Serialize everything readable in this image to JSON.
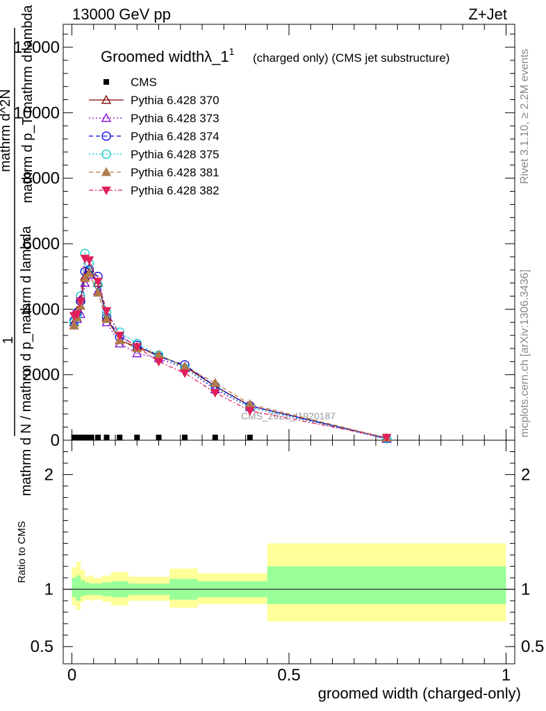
{
  "header": {
    "left": "13000 GeV pp",
    "right": "Z+Jet"
  },
  "side_labels": {
    "rivet": "Rivet 3.1.10, ≥ 2.2M events",
    "mcplots": "mcplots.cern.ch [arXiv:1306.3436]"
  },
  "watermark": "CMS_2021_I1920187",
  "chart_data": [
    {
      "type": "line",
      "title": "Groomed widthλ_1",
      "title_superscript": "1",
      "subtitle": "(charged only) (CMS jet substructure)",
      "xlabel": "",
      "ylabel_top": "1",
      "ylabel_bottom": "mathrm d N / mathrm d p_mathrm d lambda",
      "ylabel_numerator": "mathrm d^2N",
      "ylabel_denominator": "mathrm d p_T mathrm d lambda",
      "xlim": [
        -0.02,
        1.02
      ],
      "ylim": [
        0,
        12700
      ],
      "yticks": [
        0,
        2000,
        4000,
        6000,
        8000,
        10000,
        12000
      ],
      "ytick_labels": [
        "0",
        "2000",
        "4000",
        "6000",
        "8000",
        "10000",
        "12000"
      ],
      "grid": false,
      "legend_position": "top-left",
      "cms_points": {
        "name": "CMS",
        "color": "#000000",
        "x": [
          0.005,
          0.015,
          0.025,
          0.035,
          0.045,
          0.06,
          0.08,
          0.11,
          0.15,
          0.2,
          0.26,
          0.33,
          0.41
        ],
        "y": [
          0,
          0,
          0,
          0,
          0,
          0,
          0,
          0,
          0,
          0,
          0,
          0,
          0
        ]
      },
      "x": [
        0.005,
        0.012,
        0.02,
        0.03,
        0.04,
        0.06,
        0.08,
        0.11,
        0.15,
        0.2,
        0.26,
        0.33,
        0.41,
        0.725
      ],
      "series": [
        {
          "name": "Pythia 6.428 370",
          "color": "#7f0000",
          "marker": "open-triangle-up",
          "dash": "solid",
          "values": [
            3600,
            3950,
            4300,
            5000,
            5250,
            4800,
            3750,
            3050,
            2850,
            2600,
            2250,
            1650,
            1050,
            60
          ]
        },
        {
          "name": "Pythia 6.428 373",
          "color": "#7f00cc",
          "marker": "open-triangle-up",
          "dash": "dotted",
          "values": [
            3500,
            3700,
            3850,
            4800,
            5050,
            4550,
            3600,
            2950,
            2650,
            2500,
            2200,
            1550,
            1000,
            40
          ]
        },
        {
          "name": "Pythia 6.428 374",
          "color": "#0000e0",
          "marker": "open-circle",
          "dash": "dashed",
          "values": [
            3650,
            3900,
            4250,
            5150,
            5200,
            5000,
            3750,
            3150,
            2900,
            2550,
            2300,
            1650,
            1050,
            50
          ]
        },
        {
          "name": "Pythia 6.428 375",
          "color": "#00c8c8",
          "marker": "open-circle",
          "dash": "dotted",
          "values": [
            3600,
            3800,
            4400,
            5700,
            5400,
            4750,
            3900,
            3300,
            2950,
            2600,
            2200,
            1600,
            1000,
            60
          ]
        },
        {
          "name": "Pythia 6.428 381",
          "color": "#b07a4a",
          "marker": "filled-triangle-up",
          "dash": "dashed",
          "values": [
            3500,
            3750,
            4100,
            4950,
            5100,
            4500,
            3700,
            3050,
            2800,
            2600,
            2250,
            1750,
            1100,
            70
          ]
        },
        {
          "name": "Pythia 6.428 382",
          "color": "#e0205a",
          "marker": "filled-triangle-down",
          "dash": "dashdot",
          "values": [
            3800,
            3850,
            4250,
            5550,
            5500,
            4850,
            3950,
            3200,
            2850,
            2400,
            2050,
            1450,
            900,
            80
          ]
        }
      ]
    },
    {
      "type": "area",
      "xlabel": "groomed width (charged-only)",
      "ylabel": "Ratio to CMS",
      "xlim": [
        -0.02,
        1.02
      ],
      "ylim": [
        0.35,
        2.3
      ],
      "yticks": [
        0.5,
        1,
        2
      ],
      "ytick_labels": [
        "0.5",
        "1",
        "2"
      ],
      "xticks": [
        0,
        0.5,
        1
      ],
      "xtick_labels": [
        "0",
        "0.5",
        "1"
      ],
      "reference_line": 1,
      "band_colors": {
        "outer": "#ffff99",
        "inner": "#99ff99"
      },
      "bins": [
        {
          "x0": 0.0,
          "x1": 0.01,
          "outer": [
            0.86,
            1.19
          ],
          "inner": [
            0.93,
            1.1
          ]
        },
        {
          "x0": 0.01,
          "x1": 0.02,
          "outer": [
            0.82,
            1.24
          ],
          "inner": [
            0.9,
            1.12
          ]
        },
        {
          "x0": 0.02,
          "x1": 0.03,
          "outer": [
            0.89,
            1.17
          ],
          "inner": [
            0.94,
            1.08
          ]
        },
        {
          "x0": 0.03,
          "x1": 0.04,
          "outer": [
            0.91,
            1.11
          ],
          "inner": [
            0.95,
            1.06
          ]
        },
        {
          "x0": 0.04,
          "x1": 0.05,
          "outer": [
            0.9,
            1.12
          ],
          "inner": [
            0.95,
            1.05
          ]
        },
        {
          "x0": 0.05,
          "x1": 0.07,
          "outer": [
            0.91,
            1.1
          ],
          "inner": [
            0.95,
            1.05
          ]
        },
        {
          "x0": 0.07,
          "x1": 0.09,
          "outer": [
            0.89,
            1.12
          ],
          "inner": [
            0.94,
            1.06
          ]
        },
        {
          "x0": 0.09,
          "x1": 0.13,
          "outer": [
            0.86,
            1.15
          ],
          "inner": [
            0.93,
            1.07
          ]
        },
        {
          "x0": 0.13,
          "x1": 0.17,
          "outer": [
            0.9,
            1.11
          ],
          "inner": [
            0.95,
            1.05
          ]
        },
        {
          "x0": 0.17,
          "x1": 0.225,
          "outer": [
            0.9,
            1.11
          ],
          "inner": [
            0.95,
            1.05
          ]
        },
        {
          "x0": 0.225,
          "x1": 0.29,
          "outer": [
            0.84,
            1.18
          ],
          "inner": [
            0.91,
            1.09
          ]
        },
        {
          "x0": 0.29,
          "x1": 0.45,
          "outer": [
            0.87,
            1.14
          ],
          "inner": [
            0.93,
            1.07
          ]
        },
        {
          "x0": 0.45,
          "x1": 1.0,
          "outer": [
            0.72,
            1.4
          ],
          "inner": [
            0.87,
            1.2
          ]
        }
      ]
    }
  ]
}
